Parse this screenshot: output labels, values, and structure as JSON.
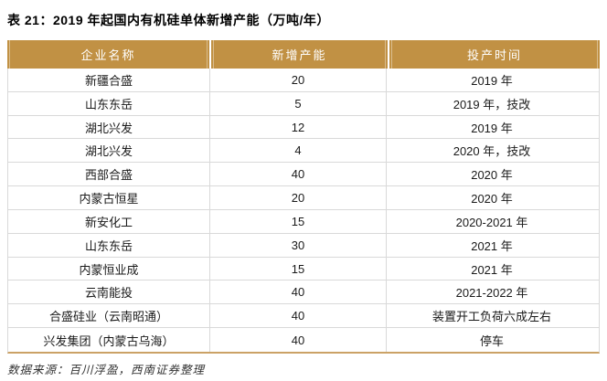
{
  "title": "表 21：2019 年起国内有机硅单体新增产能（万吨/年）",
  "table": {
    "headers": [
      "企业名称",
      "新增产能",
      "投产时间"
    ],
    "rows": [
      {
        "company": "新疆合盛",
        "capacity": "20",
        "time": "2019 年"
      },
      {
        "company": "山东东岳",
        "capacity": "5",
        "time": "2019 年，技改"
      },
      {
        "company": "湖北兴发",
        "capacity": "12",
        "time": "2019 年"
      },
      {
        "company": "湖北兴发",
        "capacity": "4",
        "time": "2020 年，技改"
      },
      {
        "company": "西部合盛",
        "capacity": "40",
        "time": "2020 年"
      },
      {
        "company": "内蒙古恒星",
        "capacity": "20",
        "time": "2020 年"
      },
      {
        "company": "新安化工",
        "capacity": "15",
        "time": "2020-2021 年"
      },
      {
        "company": "山东东岳",
        "capacity": "30",
        "time": "2021 年"
      },
      {
        "company": "内蒙恒业成",
        "capacity": "15",
        "time": "2021 年"
      },
      {
        "company": "云南能投",
        "capacity": "40",
        "time": "2021-2022 年"
      },
      {
        "company": "合盛硅业（云南昭通）",
        "capacity": "40",
        "time": "装置开工负荷六成左右"
      },
      {
        "company": "兴发集团（内蒙古乌海）",
        "capacity": "40",
        "time": "停车"
      }
    ]
  },
  "footer": {
    "source": "数据来源：百川浮盈，西南证券整理"
  },
  "colors": {
    "header_bg": "#C19144",
    "header_text": "#FFFFFF",
    "row_border": "#D9D9D9",
    "bottom_border": "#CBA266",
    "title_text": "#000000",
    "body_text": "#1A1A1A",
    "source_text": "#333333"
  }
}
